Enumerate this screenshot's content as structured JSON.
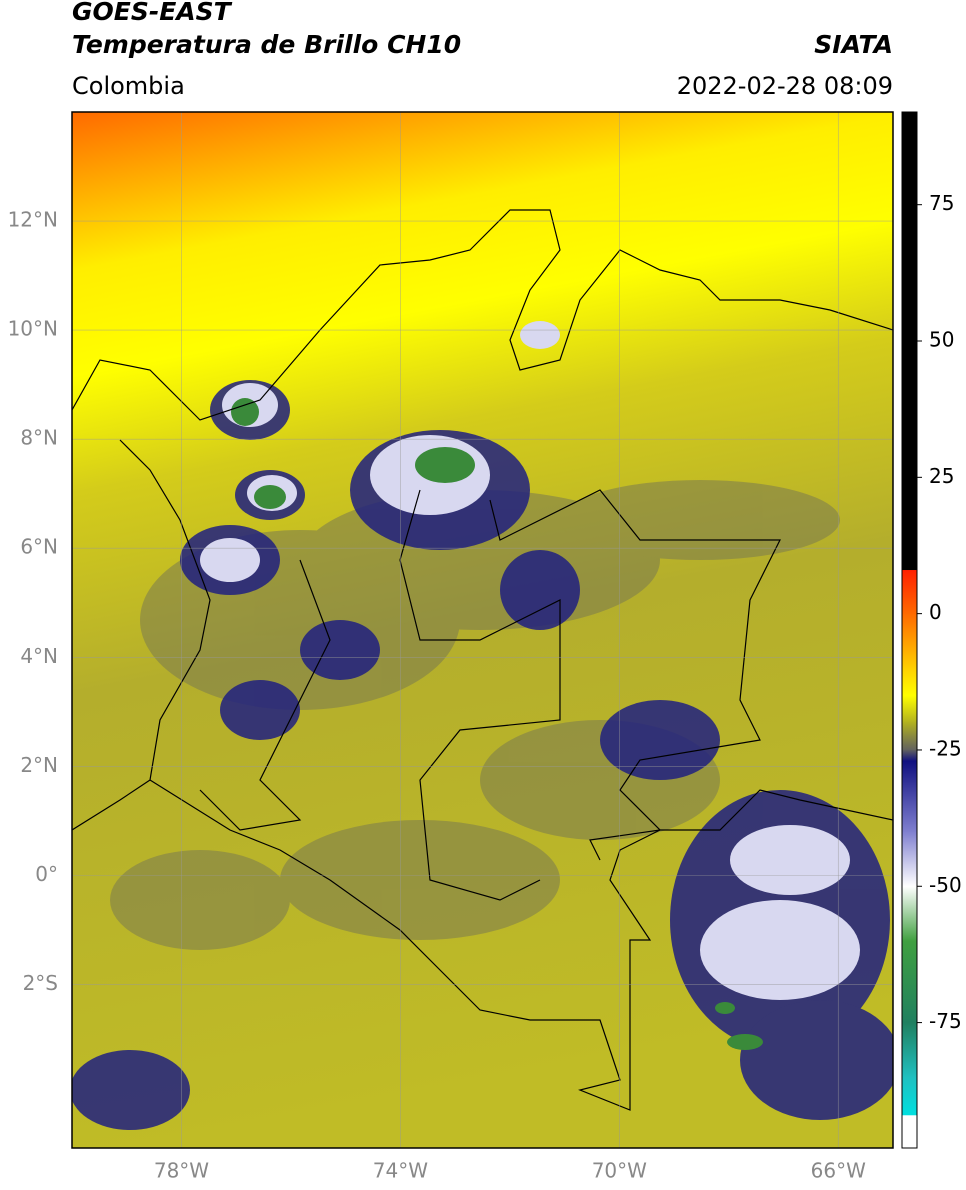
{
  "header": {
    "title": "GOES-EAST",
    "subtitle": "Temperatura de Brillo CH10",
    "source": "SIATA",
    "region": "Colombia",
    "datetime": "2022-02-28 08:09"
  },
  "map": {
    "xlim": [
      -80,
      -65
    ],
    "ylim": [
      -5,
      14
    ],
    "xticks": [
      {
        "value": -78,
        "label": "78°W"
      },
      {
        "value": -74,
        "label": "74°W"
      },
      {
        "value": -70,
        "label": "70°W"
      },
      {
        "value": -66,
        "label": "66°W"
      }
    ],
    "yticks": [
      {
        "value": 12,
        "label": "12°N"
      },
      {
        "value": 10,
        "label": "10°N"
      },
      {
        "value": 8,
        "label": "8°N"
      },
      {
        "value": 6,
        "label": "6°N"
      },
      {
        "value": 4,
        "label": "4°N"
      },
      {
        "value": 2,
        "label": "2°N"
      },
      {
        "value": 0,
        "label": "0°"
      },
      {
        "value": -2,
        "label": "2°S"
      }
    ],
    "grid": true
  },
  "colorbar": {
    "lim": [
      -98,
      92
    ],
    "ticks": [
      75,
      50,
      25,
      0,
      -25,
      -50,
      -75
    ],
    "stops": [
      {
        "value": 92,
        "color": "#000000"
      },
      {
        "value": 8,
        "color": "#000000"
      },
      {
        "value": 8,
        "color": "#ff2000"
      },
      {
        "value": 0,
        "color": "#ff6a00"
      },
      {
        "value": -10,
        "color": "#ffd000"
      },
      {
        "value": -15,
        "color": "#ffff00"
      },
      {
        "value": -20,
        "color": "#b0b020"
      },
      {
        "value": -25,
        "color": "#606060"
      },
      {
        "value": -27,
        "color": "#101080"
      },
      {
        "value": -40,
        "color": "#8080d0"
      },
      {
        "value": -50,
        "color": "#ffffff"
      },
      {
        "value": -60,
        "color": "#40a040"
      },
      {
        "value": -75,
        "color": "#208060"
      },
      {
        "value": -85,
        "color": "#20c0c0"
      },
      {
        "value": -92,
        "color": "#00e0e0"
      },
      {
        "value": -92,
        "color": "#ffffff"
      },
      {
        "value": -98,
        "color": "#ffffff"
      }
    ]
  }
}
